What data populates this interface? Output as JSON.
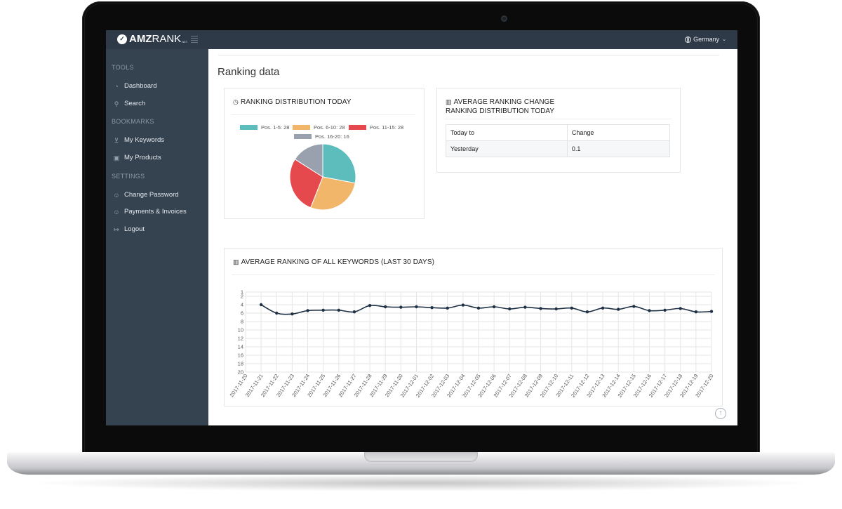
{
  "topbar": {
    "logo_mark": "✓",
    "logo_bold": "AMZ",
    "logo_light": "RANK",
    "logo_suffix": "NET",
    "country": "Germany"
  },
  "sidebar": {
    "sections": [
      {
        "title": "TOOLS",
        "items": [
          {
            "label": "Dashboard",
            "icon": "dashboard-icon"
          },
          {
            "label": "Search",
            "icon": "search-icon"
          }
        ]
      },
      {
        "title": "BOOKMARKS",
        "items": [
          {
            "label": "My Keywords",
            "icon": "cart-icon"
          },
          {
            "label": "My Products",
            "icon": "bag-icon"
          }
        ]
      },
      {
        "title": "SETTINGS",
        "items": [
          {
            "label": "Change Password",
            "icon": "user-icon"
          },
          {
            "label": "Payments & Invoices",
            "icon": "user-icon"
          },
          {
            "label": "Logout",
            "icon": "logout-icon"
          }
        ]
      }
    ]
  },
  "main": {
    "page_title": "Ranking data",
    "distribution_panel": {
      "title": "RANKING DISTRIBUTION TODAY",
      "legend": [
        {
          "label": "Pos. 1-5: 28",
          "color": "#5dbdbd"
        },
        {
          "label": "Pos. 6-10: 28",
          "color": "#f2b66b"
        },
        {
          "label": "Pos. 11-15: 28",
          "color": "#e5484d"
        },
        {
          "label": "Pos. 16-20: 16",
          "color": "#9aa1ae"
        }
      ]
    },
    "change_panel": {
      "title": "AVERAGE RANKING CHANGE",
      "subtitle": "RANKING DISTRIBUTION TODAY",
      "columns": [
        "Today to",
        "Change"
      ],
      "rows": [
        [
          "Yesterday",
          "0.1"
        ]
      ]
    },
    "line_panel": {
      "title": "AVERAGE RANKING OF ALL KEYWORDS (LAST 30 DAYS)"
    },
    "scroll_top_glyph": "↑"
  },
  "chart_data": [
    {
      "type": "pie",
      "title": "RANKING DISTRIBUTION TODAY",
      "categories": [
        "Pos. 1-5",
        "Pos. 6-10",
        "Pos. 11-15",
        "Pos. 16-20"
      ],
      "values": [
        28,
        28,
        28,
        16
      ],
      "colors": [
        "#5dbdbd",
        "#f2b66b",
        "#e5484d",
        "#9aa1ae"
      ]
    },
    {
      "type": "line",
      "title": "AVERAGE RANKING OF ALL KEYWORDS (LAST 30 DAYS)",
      "x": [
        "2017-11-20",
        "2017-11-21",
        "2017-11-22",
        "2017-11-23",
        "2017-11-24",
        "2017-11-25",
        "2017-11-26",
        "2017-11-27",
        "2017-11-28",
        "2017-11-29",
        "2017-11-30",
        "2017-12-01",
        "2017-12-02",
        "2017-12-03",
        "2017-12-04",
        "2017-12-05",
        "2017-12-06",
        "2017-12-07",
        "2017-12-08",
        "2017-12-09",
        "2017-12-10",
        "2017-12-11",
        "2017-12-12",
        "2017-12-13",
        "2017-12-14",
        "2017-12-15",
        "2017-12-16",
        "2017-12-17",
        "2017-12-18",
        "2017-12-19",
        "2017-12-20"
      ],
      "series": [
        {
          "values": [
            null,
            4.0,
            6.0,
            6.2,
            5.4,
            5.3,
            5.3,
            5.7,
            4.2,
            4.5,
            4.6,
            4.5,
            4.7,
            4.8,
            4.1,
            4.8,
            4.5,
            5.0,
            4.6,
            4.9,
            5.0,
            4.8,
            5.7,
            4.8,
            5.1,
            4.4,
            5.4,
            5.3,
            4.9,
            5.7,
            5.6
          ],
          "color": "#1f3144"
        }
      ],
      "yticks": [
        1,
        2,
        4,
        6,
        8,
        10,
        12,
        14,
        16,
        18,
        20
      ],
      "ylim": [
        1,
        20
      ],
      "y_inverted": true,
      "grid": true
    }
  ]
}
